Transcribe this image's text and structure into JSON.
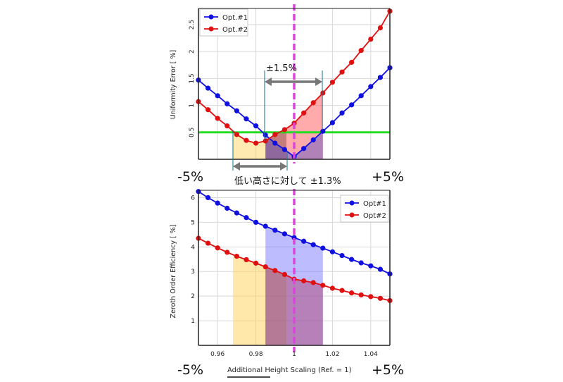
{
  "chart_data": [
    {
      "type": "line",
      "ylabel": "Uniformity Error [ %]",
      "xlim": [
        0.95,
        1.05
      ],
      "ylim": [
        0,
        2.8
      ],
      "yticks": [
        "0.5",
        "1",
        "1.5",
        "2",
        "2.5"
      ],
      "grid": true,
      "legend_position": "top-left",
      "x": [
        0.95,
        0.955,
        0.96,
        0.965,
        0.97,
        0.975,
        0.98,
        0.985,
        0.99,
        0.995,
        1.0,
        1.005,
        1.01,
        1.015,
        1.02,
        1.025,
        1.03,
        1.035,
        1.04,
        1.045,
        1.05
      ],
      "series": [
        {
          "name": "Opt.#1",
          "color": "#1010e0",
          "values": [
            1.47,
            1.32,
            1.18,
            1.03,
            0.9,
            0.75,
            0.62,
            0.45,
            0.3,
            0.18,
            0.05,
            0.2,
            0.36,
            0.52,
            0.68,
            0.86,
            1.01,
            1.18,
            1.35,
            1.52,
            1.7
          ]
        },
        {
          "name": "Opt.#2",
          "color": "#e01010",
          "values": [
            1.07,
            0.92,
            0.76,
            0.62,
            0.46,
            0.35,
            0.3,
            0.34,
            0.46,
            0.55,
            0.67,
            0.86,
            1.05,
            1.23,
            1.43,
            1.62,
            1.8,
            2.02,
            2.23,
            2.44,
            2.75
          ]
        }
      ],
      "threshold_line": 0.5,
      "annotations": {
        "range_top": "±1.5%",
        "range_bottom": "低い高さに対して ±1.3%",
        "left_limit": "-5%",
        "right_limit": "+5%"
      }
    },
    {
      "type": "line",
      "ylabel": "Zeroth Order Efficiency [ %]",
      "xlabel": "Additional Height Scaling (Ref. = 1)",
      "xlim": [
        0.95,
        1.05
      ],
      "ylim": [
        0,
        6.3
      ],
      "xticks": [
        "0.96",
        "0.98",
        "1",
        "1.02",
        "1.04"
      ],
      "yticks": [
        "1",
        "2",
        "3",
        "4",
        "5",
        "6"
      ],
      "grid": true,
      "legend_position": "top-right",
      "x": [
        0.95,
        0.955,
        0.96,
        0.965,
        0.97,
        0.975,
        0.98,
        0.985,
        0.99,
        0.995,
        1.0,
        1.005,
        1.01,
        1.015,
        1.02,
        1.025,
        1.03,
        1.035,
        1.04,
        1.045,
        1.05
      ],
      "series": [
        {
          "name": "Opt#1",
          "color": "#1010e0",
          "values": [
            6.25,
            6.0,
            5.78,
            5.57,
            5.38,
            5.19,
            5.0,
            4.84,
            4.68,
            4.53,
            4.38,
            4.23,
            4.09,
            3.95,
            3.8,
            3.65,
            3.49,
            3.35,
            3.23,
            3.09,
            2.9
          ]
        },
        {
          "name": "Opt#2",
          "color": "#e01010",
          "values": [
            4.35,
            4.15,
            3.96,
            3.78,
            3.62,
            3.48,
            3.34,
            3.19,
            3.04,
            2.88,
            2.69,
            2.62,
            2.55,
            2.44,
            2.32,
            2.23,
            2.13,
            2.05,
            1.98,
            1.91,
            1.82
          ]
        }
      ],
      "annotations": {
        "left_limit": "-5%",
        "right_limit": "+5%"
      }
    }
  ]
}
